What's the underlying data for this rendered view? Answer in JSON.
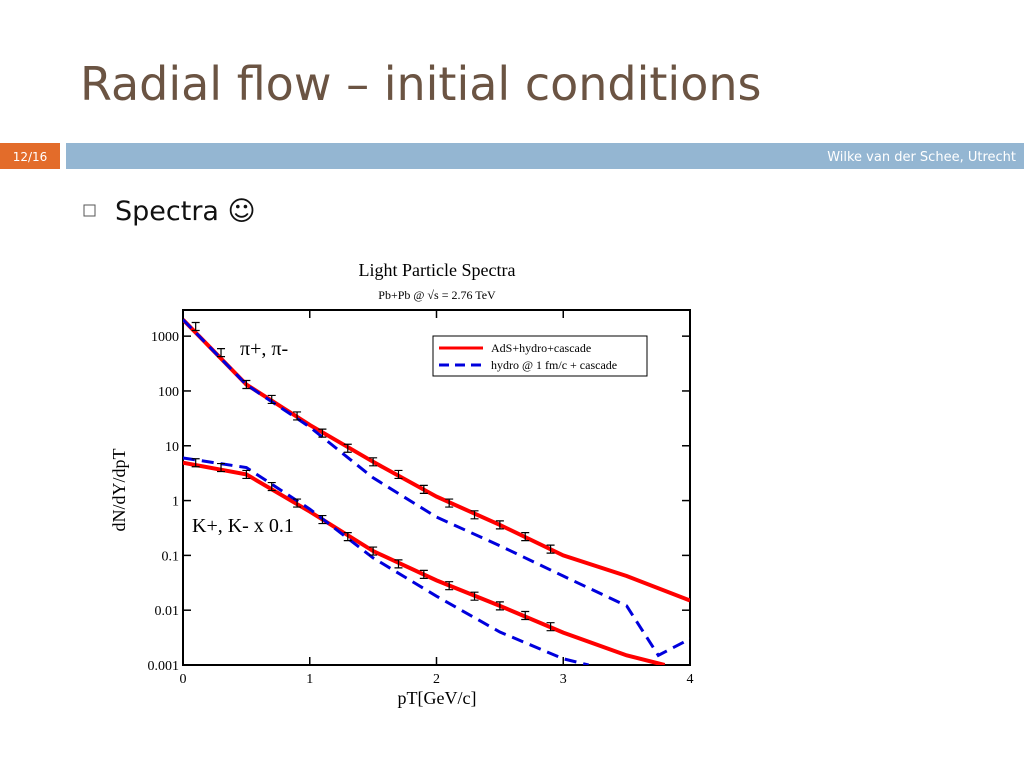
{
  "slide": {
    "title": "Radial flow – initial conditions",
    "number": "12/16",
    "footer": "Wilke van der Schee, Utrecht",
    "bullet": "Spectra ☺"
  },
  "chart_data": {
    "type": "line",
    "title": "Light Particle Spectra",
    "subtitle": "Pb+Pb @ √s = 2.76 TeV",
    "x_label": "pT[GeV/c]",
    "y_label": "dN/dY/dpT",
    "log_y": true,
    "xlim": [
      0,
      4
    ],
    "xticks": [
      0,
      1,
      2,
      3,
      4
    ],
    "ylim": [
      0.001,
      3000
    ],
    "yticks": [
      1000,
      100,
      10,
      1,
      0.1,
      0.01,
      0.001
    ],
    "legend": "upper right",
    "annotations": [
      "π+, π-",
      "K+, K- x 0.1"
    ],
    "series": [
      {
        "name": "AdS+hydro+cascade",
        "color": "#ff0000",
        "dash": false,
        "x": [
          0,
          0.5,
          1,
          1.5,
          2,
          2.5,
          3,
          3.5,
          4
        ],
        "values": [
          2000,
          131,
          24,
          5.1,
          1.18,
          0.36,
          0.1,
          0.042,
          0.015
        ]
      },
      {
        "name": "hydro @ 1 fm/c + cascade",
        "color": "#0000dd",
        "dash": true,
        "x": [
          0,
          0.5,
          1,
          1.5,
          2,
          2.5,
          3,
          3.5,
          3.75,
          4
        ],
        "values": [
          2000,
          130,
          22,
          2.6,
          0.5,
          0.15,
          0.042,
          0.012,
          0.0015,
          0.003
        ]
      },
      {
        "color": "#ff0000",
        "dash": false,
        "x": [
          0,
          0.5,
          1,
          1.5,
          2,
          2.5,
          3,
          3.5,
          3.8
        ],
        "values": [
          4.9,
          3,
          0.63,
          0.12,
          0.035,
          0.012,
          0.0039,
          0.0015,
          0.001
        ]
      },
      {
        "color": "#0000dd",
        "dash": true,
        "x": [
          0,
          0.5,
          1,
          1.5,
          2,
          2.5,
          3,
          3.2
        ],
        "values": [
          6,
          4,
          0.7,
          0.09,
          0.018,
          0.004,
          0.0013,
          0.001
        ]
      },
      {
        "color": "#000000",
        "points": true,
        "x": [
          0.1,
          0.3,
          0.5,
          0.7,
          0.9,
          1.1,
          1.3,
          1.5,
          1.7,
          1.9,
          2.1,
          2.3,
          2.5,
          2.7,
          2.9
        ],
        "values": [
          1500,
          500,
          131,
          70,
          35,
          17,
          9,
          5.1,
          3,
          1.6,
          0.9,
          0.55,
          0.36,
          0.22,
          0.13
        ]
      },
      {
        "color": "#000000",
        "points": true,
        "x": [
          0.1,
          0.3,
          0.5,
          0.7,
          0.9,
          1.1,
          1.3,
          1.5,
          1.7,
          1.9,
          2.1,
          2.3,
          2.5,
          2.7,
          2.9
        ],
        "values": [
          4.9,
          4,
          3,
          1.8,
          0.9,
          0.45,
          0.22,
          0.12,
          0.07,
          0.045,
          0.028,
          0.018,
          0.012,
          0.008,
          0.005
        ]
      }
    ]
  }
}
